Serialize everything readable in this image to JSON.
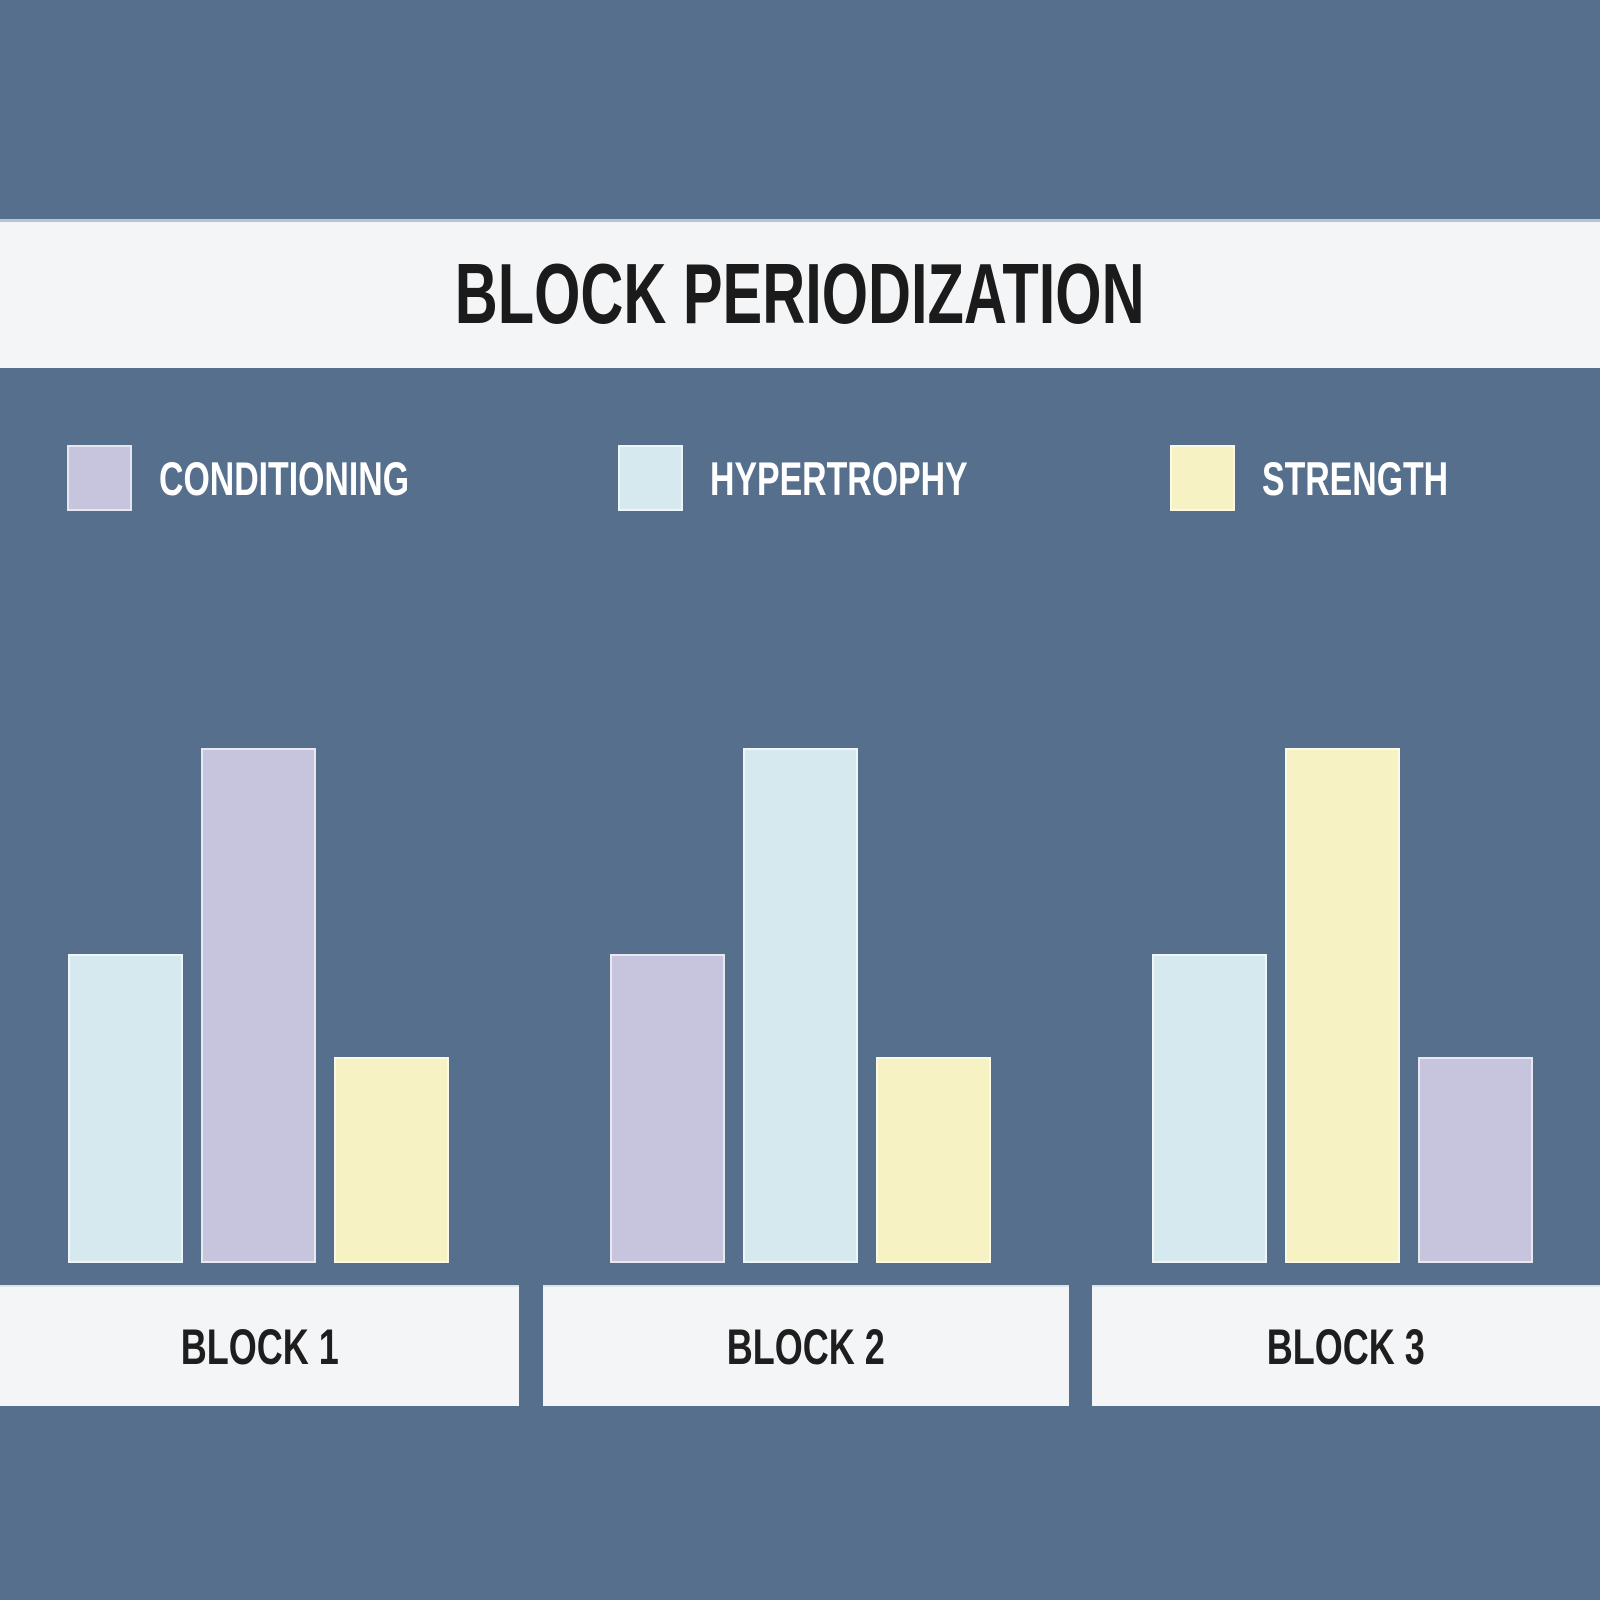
{
  "title": "BLOCK PERIODIZATION",
  "colors": {
    "background": "#566f8d",
    "panel": "#f4f5f7",
    "title_text": "#1b1b1b",
    "block_label_text": "#1e1e1e",
    "legend_text": "#ffffff",
    "conditioning": "#c7c5dd",
    "hypertrophy": "#d5e9ee",
    "strength": "#f6f2c3"
  },
  "legend": {
    "items": [
      {
        "label": "CONDITIONING",
        "color": "#c7c5dd"
      },
      {
        "label": "HYPERTROPHY",
        "color": "#d5e9ee"
      },
      {
        "label": "STRENGTH",
        "color": "#f6f2c3"
      }
    ]
  },
  "chart_data": {
    "type": "bar",
    "title": "BLOCK PERIODIZATION",
    "categories": [
      "BLOCK 1",
      "BLOCK 2",
      "BLOCK 3"
    ],
    "series": [
      {
        "name": "CONDITIONING",
        "color": "#c7c5dd",
        "values": [
          100,
          60,
          40
        ]
      },
      {
        "name": "HYPERTROPHY",
        "color": "#d5e9ee",
        "values": [
          60,
          100,
          60
        ]
      },
      {
        "name": "STRENGTH",
        "color": "#f6f2c3",
        "values": [
          40,
          40,
          100
        ]
      }
    ],
    "bar_display_order": [
      [
        "HYPERTROPHY",
        "CONDITIONING",
        "STRENGTH"
      ],
      [
        "CONDITIONING",
        "HYPERTROPHY",
        "STRENGTH"
      ],
      [
        "HYPERTROPHY",
        "STRENGTH",
        "CONDITIONING"
      ]
    ],
    "ylim": [
      0,
      100
    ],
    "value_unit": "relative training emphasis (% of max, estimated from bar heights)",
    "grid": false,
    "axes_shown": false,
    "legend_position": "top"
  }
}
